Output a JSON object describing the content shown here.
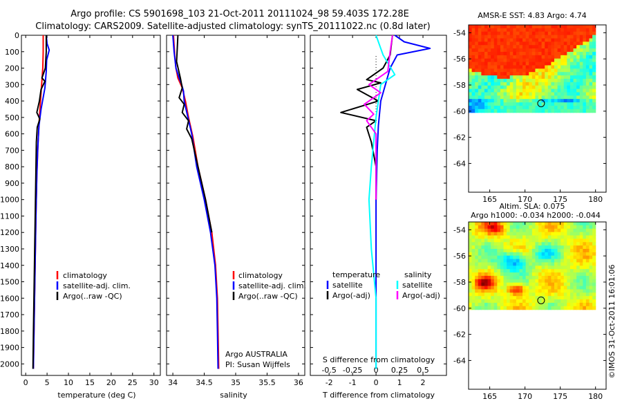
{
  "titles": {
    "line1": "Argo profile: CS 5901698_103 21-Oct-2011 20111024_98 59.403S 172.28E",
    "line2": "Climatology: CARS2009. Satellite-adjusted climatology: synTS_20111022.nc (0.8d later)"
  },
  "side_text": "©IMOS 31-Oct-2011 16:01:06",
  "colors": {
    "climatology": "#ff0000",
    "satellite": "#0000ff",
    "argo": "#000000",
    "sat_salinity": "#00ffff",
    "argo_salinity": "#ff00ff"
  },
  "chart_data": [
    {
      "type": "line",
      "id": "temperature",
      "xlabel": "temperature (deg C)",
      "ylim": [
        2070,
        0
      ],
      "xlim": [
        -1,
        31.5
      ],
      "xticks": [
        "0",
        "5",
        "10",
        "15",
        "20",
        "25",
        "30"
      ],
      "xtick_values": [
        0,
        5,
        10,
        15,
        20,
        25,
        30
      ],
      "yticks": [
        "0",
        "100",
        "200",
        "300",
        "400",
        "500",
        "600",
        "700",
        "800",
        "900",
        "1000",
        "1100",
        "1200",
        "1300",
        "1400",
        "1500",
        "1600",
        "1700",
        "1800",
        "1900",
        "2000"
      ],
      "legend": {
        "position": "lower-middle",
        "entries": [
          "climatology",
          "satellite-adj. clim.",
          "Argo(..raw -QC)"
        ]
      },
      "series": [
        {
          "name": "climatology",
          "color": "#ff0000",
          "points": [
            [
              4.1,
              0
            ],
            [
              4.1,
              100
            ],
            [
              4.0,
              200
            ],
            [
              3.6,
              350
            ],
            [
              3.2,
              500
            ],
            [
              2.9,
              650
            ],
            [
              2.6,
              850
            ],
            [
              2.4,
              1100
            ],
            [
              2.2,
              1400
            ],
            [
              2.0,
              1700
            ],
            [
              1.8,
              2030
            ]
          ]
        },
        {
          "name": "satellite-adj. clim.",
          "color": "#0000ff",
          "points": [
            [
              4.8,
              0
            ],
            [
              5.0,
              50
            ],
            [
              5.5,
              90
            ],
            [
              4.9,
              150
            ],
            [
              4.8,
              220
            ],
            [
              4.5,
              320
            ],
            [
              3.6,
              450
            ],
            [
              3.1,
              550
            ],
            [
              2.8,
              700
            ],
            [
              2.6,
              850
            ],
            [
              2.4,
              1100
            ],
            [
              2.2,
              1400
            ],
            [
              2.0,
              1700
            ],
            [
              1.8,
              2030
            ]
          ]
        },
        {
          "name": "Argo(..raw -QC)",
          "color": "#000000",
          "points": [
            [
              4.8,
              0
            ],
            [
              4.8,
              100
            ],
            [
              4.6,
              200
            ],
            [
              3.8,
              260
            ],
            [
              4.5,
              280
            ],
            [
              3.6,
              330
            ],
            [
              3.2,
              400
            ],
            [
              2.6,
              470
            ],
            [
              3.3,
              510
            ],
            [
              2.7,
              560
            ],
            [
              2.5,
              650
            ],
            [
              1.8,
              1820
            ],
            [
              1.7,
              2030
            ]
          ]
        }
      ]
    },
    {
      "type": "line",
      "id": "salinity",
      "xlabel": "salinity",
      "ylim": [
        2070,
        0
      ],
      "xlim": [
        33.9,
        36.1
      ],
      "xticks": [
        "34",
        "34.5",
        "35",
        "35.5",
        "36"
      ],
      "xtick_values": [
        34,
        34.5,
        35,
        35.5,
        36
      ],
      "legend": {
        "position": "lower-middle",
        "entries": [
          "climatology",
          "satellite-adj. clim.",
          "Argo(..raw -QC)"
        ]
      },
      "annotations": [
        "Argo AUSTRALIA",
        "PI: Susan Wijffels"
      ],
      "series": [
        {
          "name": "climatology",
          "color": "#ff0000",
          "points": [
            [
              34.01,
              0
            ],
            [
              34.03,
              120
            ],
            [
              34.05,
              200
            ],
            [
              34.08,
              260
            ],
            [
              34.15,
              320
            ],
            [
              34.2,
              400
            ],
            [
              34.25,
              500
            ],
            [
              34.32,
              620
            ],
            [
              34.4,
              800
            ],
            [
              34.52,
              1000
            ],
            [
              34.62,
              1200
            ],
            [
              34.68,
              1400
            ],
            [
              34.71,
              1600
            ],
            [
              34.72,
              1800
            ],
            [
              34.73,
              2030
            ]
          ]
        },
        {
          "name": "satellite-adj. clim.",
          "color": "#0000ff",
          "points": [
            [
              34.0,
              0
            ],
            [
              34.02,
              100
            ],
            [
              34.05,
              200
            ],
            [
              34.1,
              260
            ],
            [
              34.14,
              300
            ],
            [
              34.17,
              340
            ],
            [
              34.18,
              400
            ],
            [
              34.24,
              500
            ],
            [
              34.3,
              600
            ],
            [
              34.38,
              800
            ],
            [
              34.5,
              1000
            ],
            [
              34.6,
              1200
            ],
            [
              34.67,
              1400
            ],
            [
              34.7,
              1600
            ],
            [
              34.71,
              1800
            ],
            [
              34.72,
              2030
            ]
          ]
        },
        {
          "name": "Argo(..raw -QC)",
          "color": "#000000",
          "points": [
            [
              34.08,
              0
            ],
            [
              34.07,
              80
            ],
            [
              34.06,
              160
            ],
            [
              34.12,
              260
            ],
            [
              34.15,
              320
            ],
            [
              34.1,
              380
            ],
            [
              34.18,
              420
            ],
            [
              34.15,
              470
            ],
            [
              34.25,
              520
            ],
            [
              34.22,
              570
            ],
            [
              34.3,
              630
            ],
            [
              34.4,
              800
            ],
            [
              34.52,
              1000
            ],
            [
              34.62,
              1200
            ]
          ]
        }
      ]
    },
    {
      "type": "line",
      "id": "difference",
      "xlabel": "T difference from climatology",
      "xlabel_top": "S difference from climatology",
      "ylim": [
        2070,
        0
      ],
      "xlim": [
        -2.8,
        3.0
      ],
      "xticks": [
        "-2",
        "-1",
        "0",
        "1",
        "2"
      ],
      "xtick_values": [
        -2,
        -1,
        0,
        1,
        2
      ],
      "s_xticks": [
        "-0.5",
        "-0.25",
        "0",
        "0.25",
        "0.5"
      ],
      "s_xtick_positions": [
        -2,
        -1,
        0,
        1,
        2
      ],
      "legend": {
        "position": "lower-middle",
        "header_left": "temperature",
        "header_right": "salinity",
        "entries": [
          "satellite",
          "Argo(-adj)",
          "satellite",
          "Argo(-adj)"
        ]
      },
      "series": [
        {
          "name": "satellite",
          "group": "temperature",
          "color": "#0000ff",
          "points": [
            [
              0.8,
              0
            ],
            [
              1.2,
              40
            ],
            [
              2.3,
              80
            ],
            [
              0.9,
              120
            ],
            [
              0.6,
              200
            ],
            [
              0.4,
              300
            ],
            [
              0.2,
              400
            ],
            [
              0.1,
              550
            ],
            [
              0.05,
              700
            ],
            [
              0.0,
              1000
            ],
            [
              0.0,
              1500
            ],
            [
              0.0,
              2030
            ]
          ]
        },
        {
          "name": "Argo(-adj)",
          "group": "temperature",
          "color": "#000000",
          "points": [
            [
              0.7,
              0
            ],
            [
              0.6,
              120
            ],
            [
              0.3,
              200
            ],
            [
              -0.4,
              270
            ],
            [
              0.2,
              290
            ],
            [
              -0.8,
              330
            ],
            [
              0.1,
              400
            ],
            [
              -1.5,
              470
            ],
            [
              0.0,
              520
            ],
            [
              -0.4,
              560
            ],
            [
              -0.2,
              650
            ],
            [
              0.0,
              800
            ],
            [
              0.0,
              1000
            ]
          ]
        },
        {
          "name": "satellite",
          "group": "salinity",
          "color": "#00ffff",
          "points": [
            [
              0.0,
              0
            ],
            [
              0.3,
              120
            ],
            [
              0.8,
              240
            ],
            [
              0.2,
              300
            ],
            [
              0.0,
              500
            ],
            [
              -0.2,
              800
            ],
            [
              -0.3,
              1000
            ],
            [
              -0.2,
              1300
            ],
            [
              0.0,
              1600
            ],
            [
              0.0,
              2030
            ]
          ]
        },
        {
          "name": "Argo(-adj)",
          "group": "salinity",
          "color": "#ff00ff",
          "points": [
            [
              0.7,
              0
            ],
            [
              0.6,
              100
            ],
            [
              0.5,
              220
            ],
            [
              -0.3,
              300
            ],
            [
              0.2,
              350
            ],
            [
              -0.5,
              420
            ],
            [
              -0.1,
              480
            ],
            [
              -0.4,
              520
            ],
            [
              0.0,
              600
            ],
            [
              0.0,
              700
            ],
            [
              0.0,
              1000
            ]
          ]
        }
      ]
    },
    {
      "type": "heatmap",
      "id": "sst-map",
      "title": "AMSR-E SST: 4.83  Argo: 4.74",
      "xlim": [
        162,
        181.5
      ],
      "ylim": [
        -66.2,
        -53.4
      ],
      "xticks": [
        "165",
        "170",
        "175",
        "180"
      ],
      "xtick_values": [
        165,
        170,
        175,
        180
      ],
      "yticks": [
        "-54",
        "-56",
        "-58",
        "-60",
        "-62",
        "-64"
      ],
      "ytick_values": [
        -54,
        -56,
        -58,
        -60,
        -62,
        -64
      ],
      "data_extent": {
        "lon": [
          162,
          180
        ],
        "lat": [
          -60.1,
          -53.4
        ]
      },
      "marker": {
        "lon": 172.28,
        "lat": -59.403
      }
    },
    {
      "type": "heatmap",
      "id": "sla-map",
      "title": "Altim. SLA: 0.075",
      "subtitle": "Argo h1000: -0.034  h2000: -0.044",
      "xlim": [
        162,
        181.5
      ],
      "ylim": [
        -66.2,
        -53.4
      ],
      "xticks": [
        "165",
        "170",
        "175",
        "180"
      ],
      "xtick_values": [
        165,
        170,
        175,
        180
      ],
      "yticks": [
        "-54",
        "-56",
        "-58",
        "-60",
        "-62",
        "-64"
      ],
      "ytick_values": [
        -54,
        -56,
        -58,
        -60,
        -62,
        -64
      ],
      "data_extent": {
        "lon": [
          162,
          180
        ],
        "lat": [
          -60.1,
          -53.4
        ]
      },
      "marker": {
        "lon": 172.28,
        "lat": -59.403
      }
    }
  ]
}
